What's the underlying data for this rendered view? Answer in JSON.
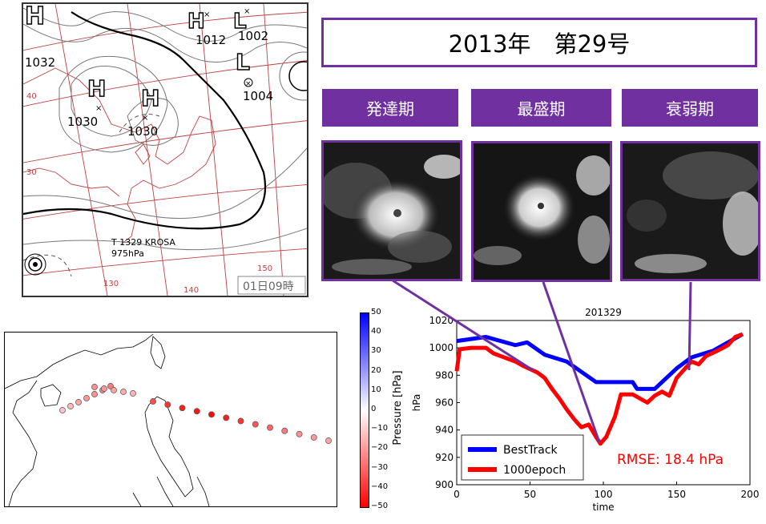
{
  "title": "2013年　第29号",
  "stages": [
    "発達期",
    "最盛期",
    "衰弱期"
  ],
  "weather_map": {
    "highs": [
      {
        "label": "H",
        "pressure": "1032"
      },
      {
        "label": "H",
        "pressure": "1012"
      },
      {
        "label": "H",
        "pressure": "1030"
      },
      {
        "label": "H",
        "pressure": "1030"
      }
    ],
    "lows": [
      {
        "label": "L",
        "pressure": "1002"
      },
      {
        "label": "L",
        "pressure": "1004"
      }
    ],
    "lat_labels": [
      "40",
      "30"
    ],
    "lon_labels": [
      "130",
      "140",
      "150"
    ],
    "typhoon_label": "T 1329 KROSA",
    "typhoon_pressure": "975hPa",
    "time_stamp": "01日09時"
  },
  "colorbar": {
    "label": "Pressure [hPa]",
    "ticks": [
      "50",
      "40",
      "30",
      "20",
      "10",
      "0",
      "−10",
      "−20",
      "−30",
      "−40",
      "−50"
    ],
    "colors": {
      "top": "#0000ff",
      "mid": "#ffffff",
      "bottom": "#ff0000"
    }
  },
  "track_dots": [
    {
      "p": -12
    },
    {
      "p": -14
    },
    {
      "p": -18
    },
    {
      "p": -20
    },
    {
      "p": -22
    },
    {
      "p": -24
    },
    {
      "p": -26
    },
    {
      "p": -22
    },
    {
      "p": -20
    },
    {
      "p": -18
    },
    {
      "p": -16
    },
    {
      "p": -15
    },
    {
      "p": -35
    },
    {
      "p": -40
    },
    {
      "p": -44
    },
    {
      "p": -46
    },
    {
      "p": -48
    },
    {
      "p": -44
    },
    {
      "p": -40
    },
    {
      "p": -34
    },
    {
      "p": -30
    },
    {
      "p": -26
    },
    {
      "p": -22
    },
    {
      "p": -20
    },
    {
      "p": -18
    }
  ],
  "chart_data": {
    "type": "line",
    "title": "201329",
    "xlabel": "time",
    "ylabel": "hPa",
    "xlim": [
      0,
      200
    ],
    "ylim": [
      900,
      1020
    ],
    "xticks": [
      0,
      50,
      100,
      150,
      200
    ],
    "yticks": [
      900,
      920,
      940,
      960,
      980,
      1000,
      1020
    ],
    "legend_position": "lower-left",
    "annotation": "RMSE:  18.4 hPa",
    "series": [
      {
        "name": "BestTrack",
        "color": "#0000ff",
        "x": [
          0,
          20,
          40,
          48,
          60,
          75,
          95,
          120,
          123,
          135,
          150,
          160,
          175,
          195
        ],
        "y": [
          1005,
          1008,
          1002,
          1004,
          995,
          990,
          975,
          975,
          970,
          970,
          985,
          993,
          998,
          1010
        ]
      },
      {
        "name": "1000epoch",
        "color": "#ff0000",
        "x": [
          0,
          2,
          10,
          20,
          25,
          30,
          40,
          45,
          55,
          60,
          65,
          70,
          75,
          80,
          85,
          90,
          95,
          98,
          102,
          108,
          112,
          120,
          130,
          135,
          140,
          145,
          150,
          155,
          160,
          165,
          170,
          178,
          185,
          190,
          195
        ],
        "y": [
          983,
          999,
          1000,
          1000,
          996,
          994,
          990,
          987,
          982,
          978,
          970,
          963,
          955,
          948,
          942,
          944,
          935,
          930,
          935,
          950,
          966,
          966,
          960,
          965,
          968,
          965,
          978,
          984,
          990,
          988,
          994,
          998,
          1002,
          1008,
          1010
        ]
      }
    ]
  }
}
